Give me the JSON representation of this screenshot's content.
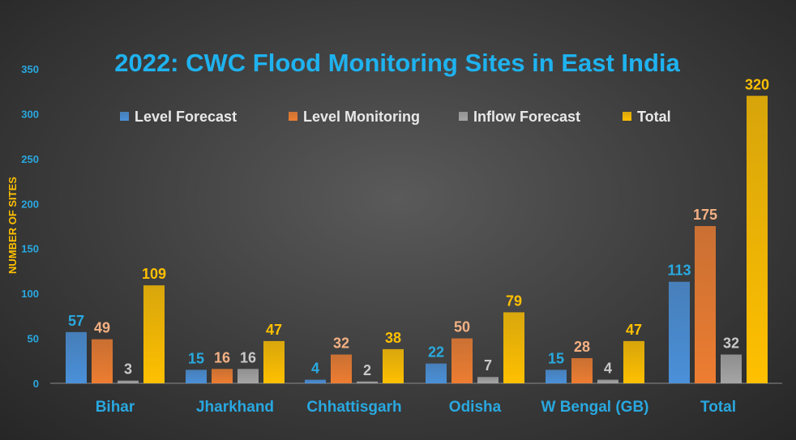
{
  "chart_data": {
    "type": "bar",
    "title": "2022: CWC Flood Monitoring Sites in East India",
    "xlabel": "",
    "ylabel": "NUMBER OF SITES",
    "ylim": [
      0,
      350
    ],
    "yticks": [
      0,
      50,
      100,
      150,
      200,
      250,
      300,
      350
    ],
    "grid": false,
    "legend_position": "top",
    "categories": [
      "Bihar",
      "Jharkhand",
      "Chhattisgarh",
      "Odisha",
      "W Bengal (GB)",
      "Total"
    ],
    "series": [
      {
        "name": "Level Forecast",
        "color": "#4a90d9",
        "label_color": "#29aae1",
        "values": [
          57,
          15,
          4,
          22,
          15,
          113
        ]
      },
      {
        "name": "Level Monitoring",
        "color": "#ed7d31",
        "label_color": "#f4b183",
        "values": [
          49,
          16,
          32,
          50,
          28,
          175
        ]
      },
      {
        "name": "Inflow Forecast",
        "color": "#a5a5a5",
        "label_color": "#c9c9c9",
        "values": [
          3,
          16,
          2,
          7,
          4,
          32
        ]
      },
      {
        "name": "Total",
        "color": "#ffc000",
        "label_color": "#ffc000",
        "values": [
          109,
          47,
          38,
          79,
          47,
          320
        ]
      }
    ]
  }
}
